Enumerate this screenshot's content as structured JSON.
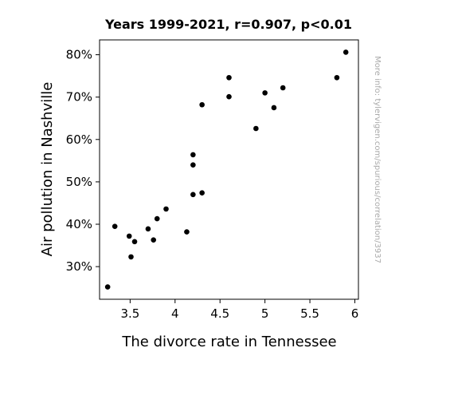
{
  "chart_data": {
    "type": "scatter",
    "title": "Years 1999-2021, r=0.907, p<0.01",
    "xlabel": "The divorce rate in Tennessee",
    "ylabel": "Air pollution in Nashville",
    "xlim": [
      3.16,
      6.04
    ],
    "ylim": [
      22.3,
      83.5
    ],
    "x_ticks": [
      3.5,
      4,
      4.5,
      5,
      5.5,
      6
    ],
    "x_tick_labels": [
      "3.5",
      "4",
      "4.5",
      "5",
      "5.5",
      "6"
    ],
    "y_ticks": [
      30,
      40,
      50,
      60,
      70,
      80
    ],
    "y_tick_labels": [
      "30%",
      "40%",
      "50%",
      "60%",
      "70%",
      "80%"
    ],
    "grid": false,
    "point_color": "#000000",
    "points": [
      {
        "x": 3.25,
        "y": 25.2
      },
      {
        "x": 3.33,
        "y": 39.5
      },
      {
        "x": 3.49,
        "y": 37.2
      },
      {
        "x": 3.51,
        "y": 32.3
      },
      {
        "x": 3.55,
        "y": 35.9
      },
      {
        "x": 3.7,
        "y": 38.9
      },
      {
        "x": 3.76,
        "y": 36.3
      },
      {
        "x": 3.8,
        "y": 41.3
      },
      {
        "x": 3.9,
        "y": 43.6
      },
      {
        "x": 4.13,
        "y": 38.2
      },
      {
        "x": 4.2,
        "y": 56.4
      },
      {
        "x": 4.2,
        "y": 54.0
      },
      {
        "x": 4.2,
        "y": 47.0
      },
      {
        "x": 4.3,
        "y": 68.2
      },
      {
        "x": 4.3,
        "y": 47.4
      },
      {
        "x": 4.6,
        "y": 74.6
      },
      {
        "x": 4.6,
        "y": 70.1
      },
      {
        "x": 4.9,
        "y": 62.6
      },
      {
        "x": 5.0,
        "y": 71.0
      },
      {
        "x": 5.1,
        "y": 67.5
      },
      {
        "x": 5.2,
        "y": 72.2
      },
      {
        "x": 5.8,
        "y": 74.6
      },
      {
        "x": 5.9,
        "y": 80.6
      }
    ]
  },
  "credit": "More info: tylervigen.com/spurious/correlation/3937"
}
